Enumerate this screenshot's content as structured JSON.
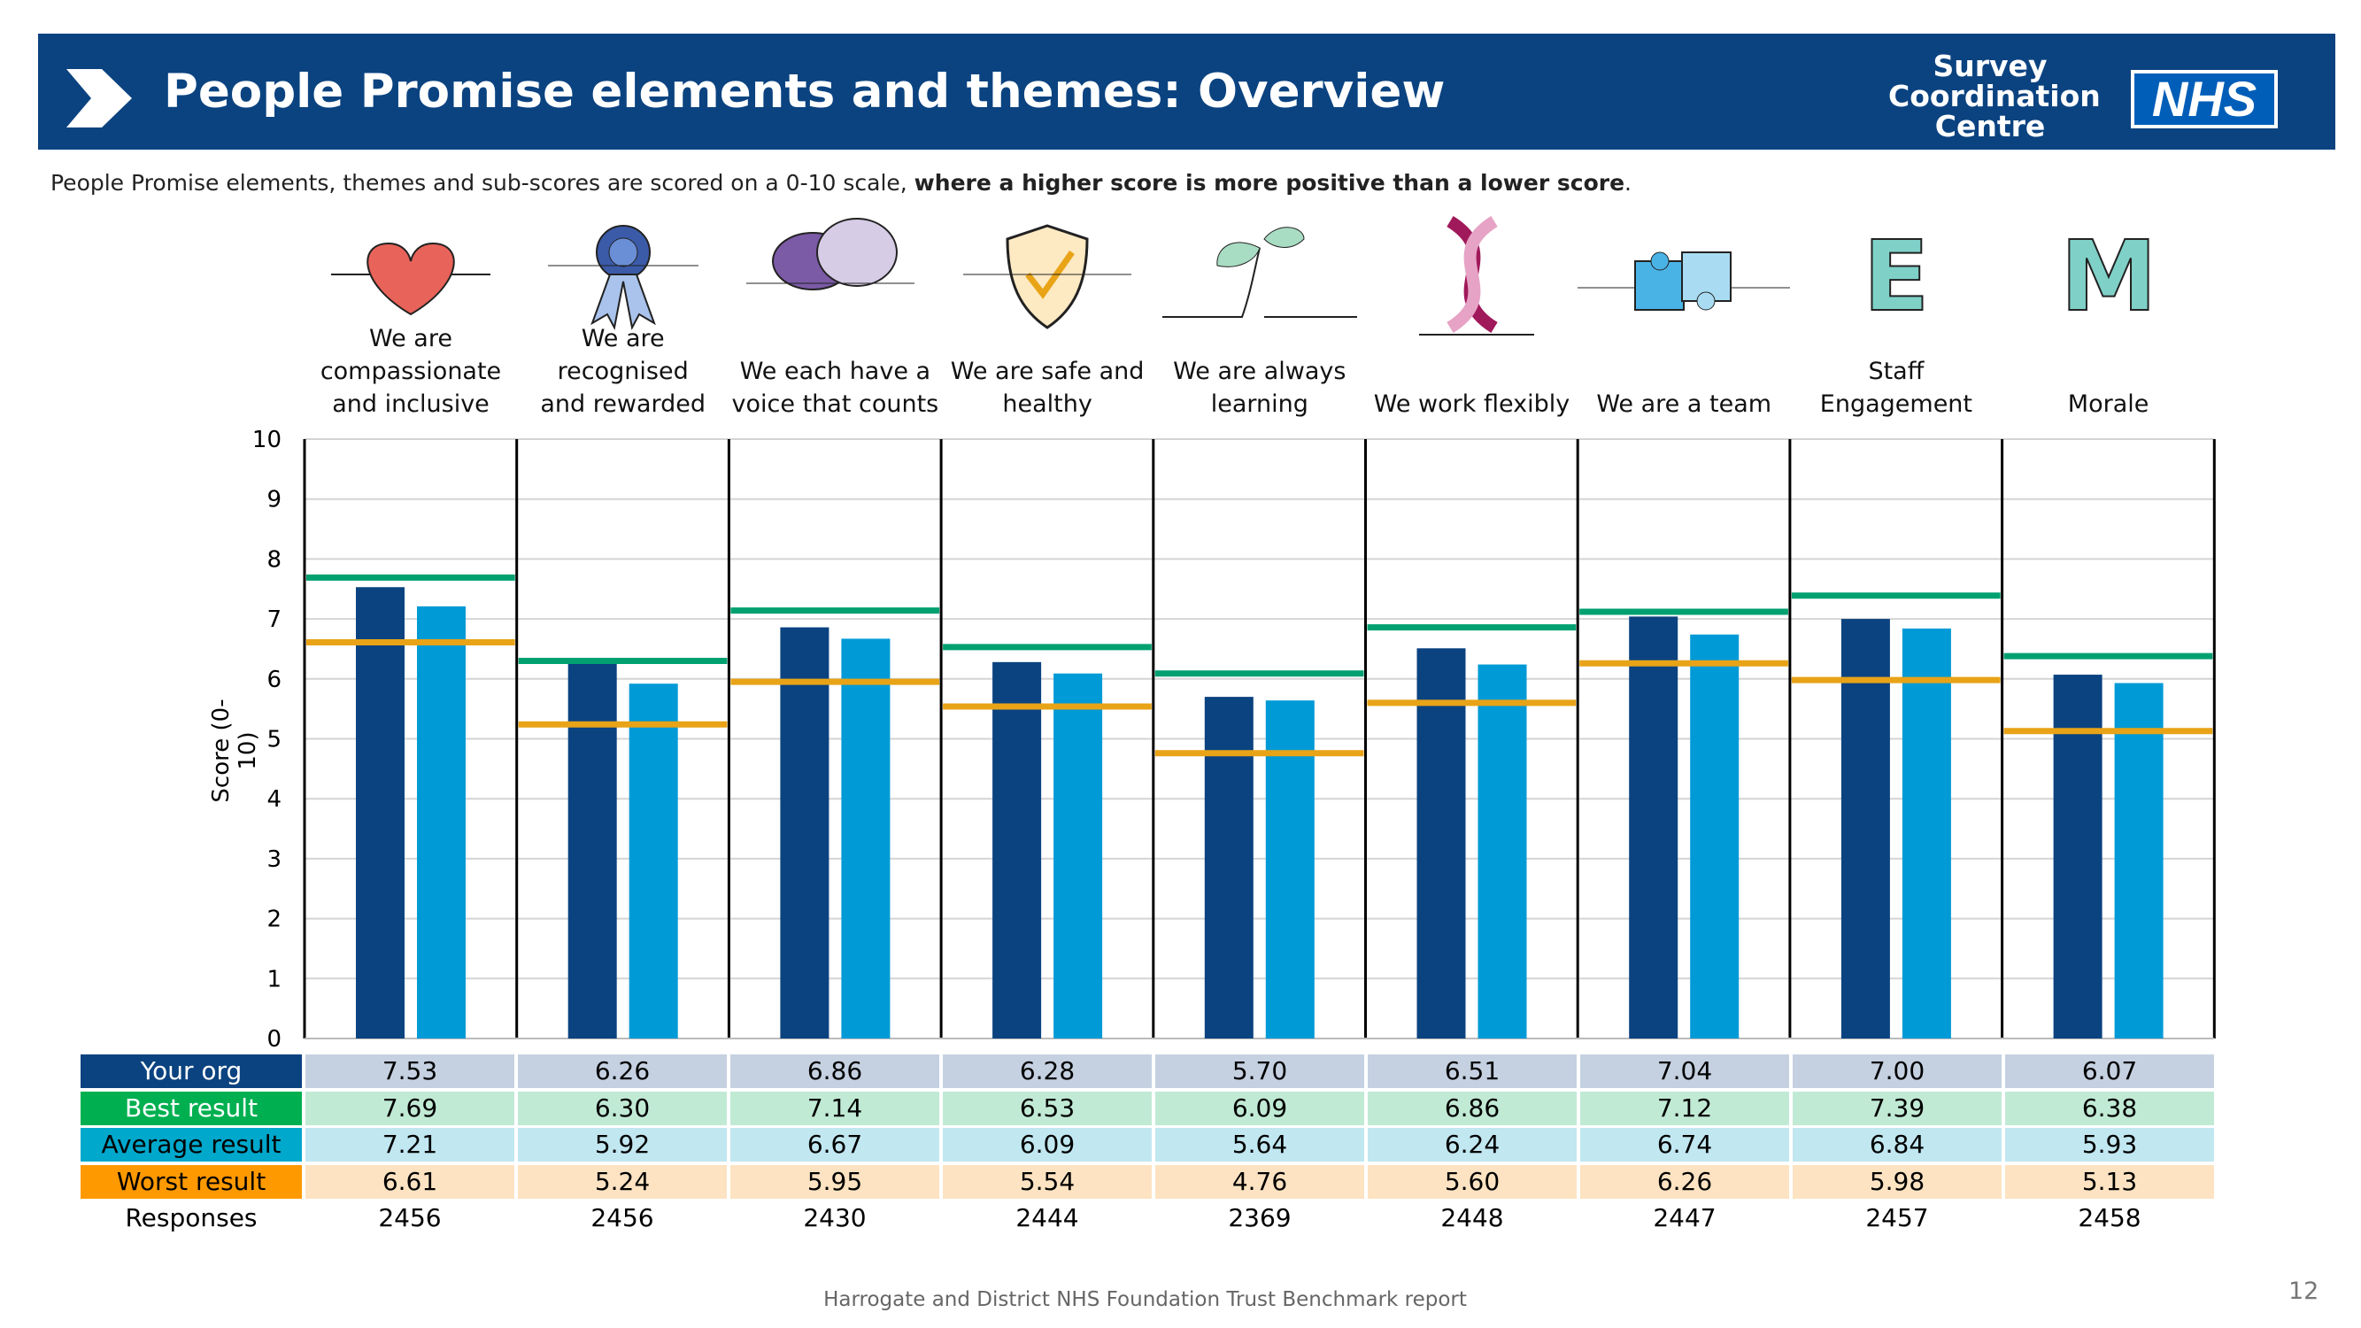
{
  "header": {
    "title": "People Promise elements and themes: Overview",
    "logo_lines": [
      "Survey",
      "Coordination",
      "Centre"
    ],
    "nhs_logo": "NHS"
  },
  "subtitle": {
    "normal": "People Promise elements, themes and sub-scores are scored on a 0-10 scale, ",
    "bold": "where a higher score is more positive than a lower score",
    "end": "."
  },
  "colors": {
    "header_bg": "#0b4380",
    "your_org": "#0b4380",
    "average": "#009ad6",
    "best": "#00a070",
    "worst": "#e8a317"
  },
  "chart_data": {
    "type": "bar",
    "title": "People Promise elements and themes: Overview",
    "ylabel": "Score (0-10)",
    "ylim": [
      0,
      10
    ],
    "yticks": [
      "0",
      "1",
      "2",
      "3",
      "4",
      "5",
      "6",
      "7",
      "8",
      "9",
      "10"
    ],
    "grid": true,
    "categories": [
      {
        "lines": [
          "We are",
          "compassionate",
          "and inclusive"
        ],
        "icon": "heart-icon"
      },
      {
        "lines": [
          "We are recognised",
          "and rewarded"
        ],
        "icon": "rosette-icon"
      },
      {
        "lines": [
          "We each have a",
          "voice that counts"
        ],
        "icon": "speech-bubbles-icon"
      },
      {
        "lines": [
          "We are safe and",
          "healthy"
        ],
        "icon": "shield-check-icon"
      },
      {
        "lines": [
          "We are always",
          "learning"
        ],
        "icon": "sprout-icon"
      },
      {
        "lines": [
          "We work flexibly"
        ],
        "icon": "flexible-arrows-icon"
      },
      {
        "lines": [
          "We are a team"
        ],
        "icon": "puzzle-icon"
      },
      {
        "lines": [
          "Staff Engagement"
        ],
        "icon": "letter-e-icon"
      },
      {
        "lines": [
          "Morale"
        ],
        "icon": "letter-m-icon"
      }
    ],
    "series": [
      {
        "name": "Your org",
        "mark": "bar",
        "values": [
          7.53,
          6.26,
          6.86,
          6.28,
          5.7,
          6.51,
          7.04,
          7.0,
          6.07
        ]
      },
      {
        "name": "Best result",
        "mark": "line",
        "values": [
          7.69,
          6.3,
          7.14,
          6.53,
          6.09,
          6.86,
          7.12,
          7.39,
          6.38
        ]
      },
      {
        "name": "Average result",
        "mark": "bar",
        "values": [
          7.21,
          5.92,
          6.67,
          6.09,
          5.64,
          6.24,
          6.74,
          6.84,
          5.93
        ]
      },
      {
        "name": "Worst result",
        "mark": "line",
        "values": [
          6.61,
          5.24,
          5.95,
          5.54,
          4.76,
          5.6,
          6.26,
          5.98,
          5.13
        ]
      }
    ],
    "responses_label": "Responses",
    "responses": [
      "2456",
      "2456",
      "2430",
      "2444",
      "2369",
      "2448",
      "2447",
      "2457",
      "2458"
    ]
  },
  "table": {
    "rows": [
      {
        "label": "Your org",
        "cells": [
          "7.53",
          "6.26",
          "6.86",
          "6.28",
          "5.70",
          "6.51",
          "7.04",
          "7.00",
          "6.07"
        ]
      },
      {
        "label": "Best result",
        "cells": [
          "7.69",
          "6.30",
          "7.14",
          "6.53",
          "6.09",
          "6.86",
          "7.12",
          "7.39",
          "6.38"
        ]
      },
      {
        "label": "Average result",
        "cells": [
          "7.21",
          "5.92",
          "6.67",
          "6.09",
          "5.64",
          "6.24",
          "6.74",
          "6.84",
          "5.93"
        ]
      },
      {
        "label": "Worst result",
        "cells": [
          "6.61",
          "5.24",
          "5.95",
          "5.54",
          "4.76",
          "5.60",
          "6.26",
          "5.98",
          "5.13"
        ]
      }
    ]
  },
  "footer": {
    "text": "Harrogate and District NHS Foundation Trust Benchmark report",
    "page_number": "12"
  }
}
